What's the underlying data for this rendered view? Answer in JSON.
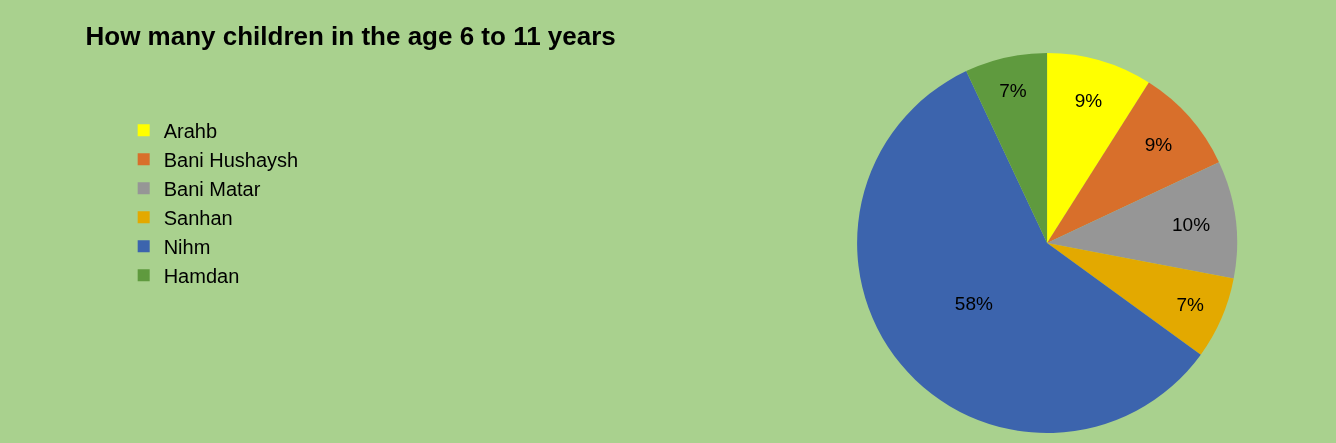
{
  "chart_data": {
    "type": "pie",
    "title": "How many children in the age 6 to 11 years",
    "categories": [
      "Arahb",
      "Bani Hushaysh",
      "Bani Matar",
      "Sanhan",
      "Nihm",
      "Hamdan"
    ],
    "values": [
      9,
      9,
      10,
      7,
      58,
      7
    ],
    "colors": [
      "#ffff00",
      "#d86f2b",
      "#969696",
      "#e3a900",
      "#3c64ad",
      "#5f9a3e"
    ],
    "value_labels": [
      "9%",
      "9%",
      "10%",
      "7%",
      "58%",
      "7%"
    ],
    "legend": "left"
  }
}
